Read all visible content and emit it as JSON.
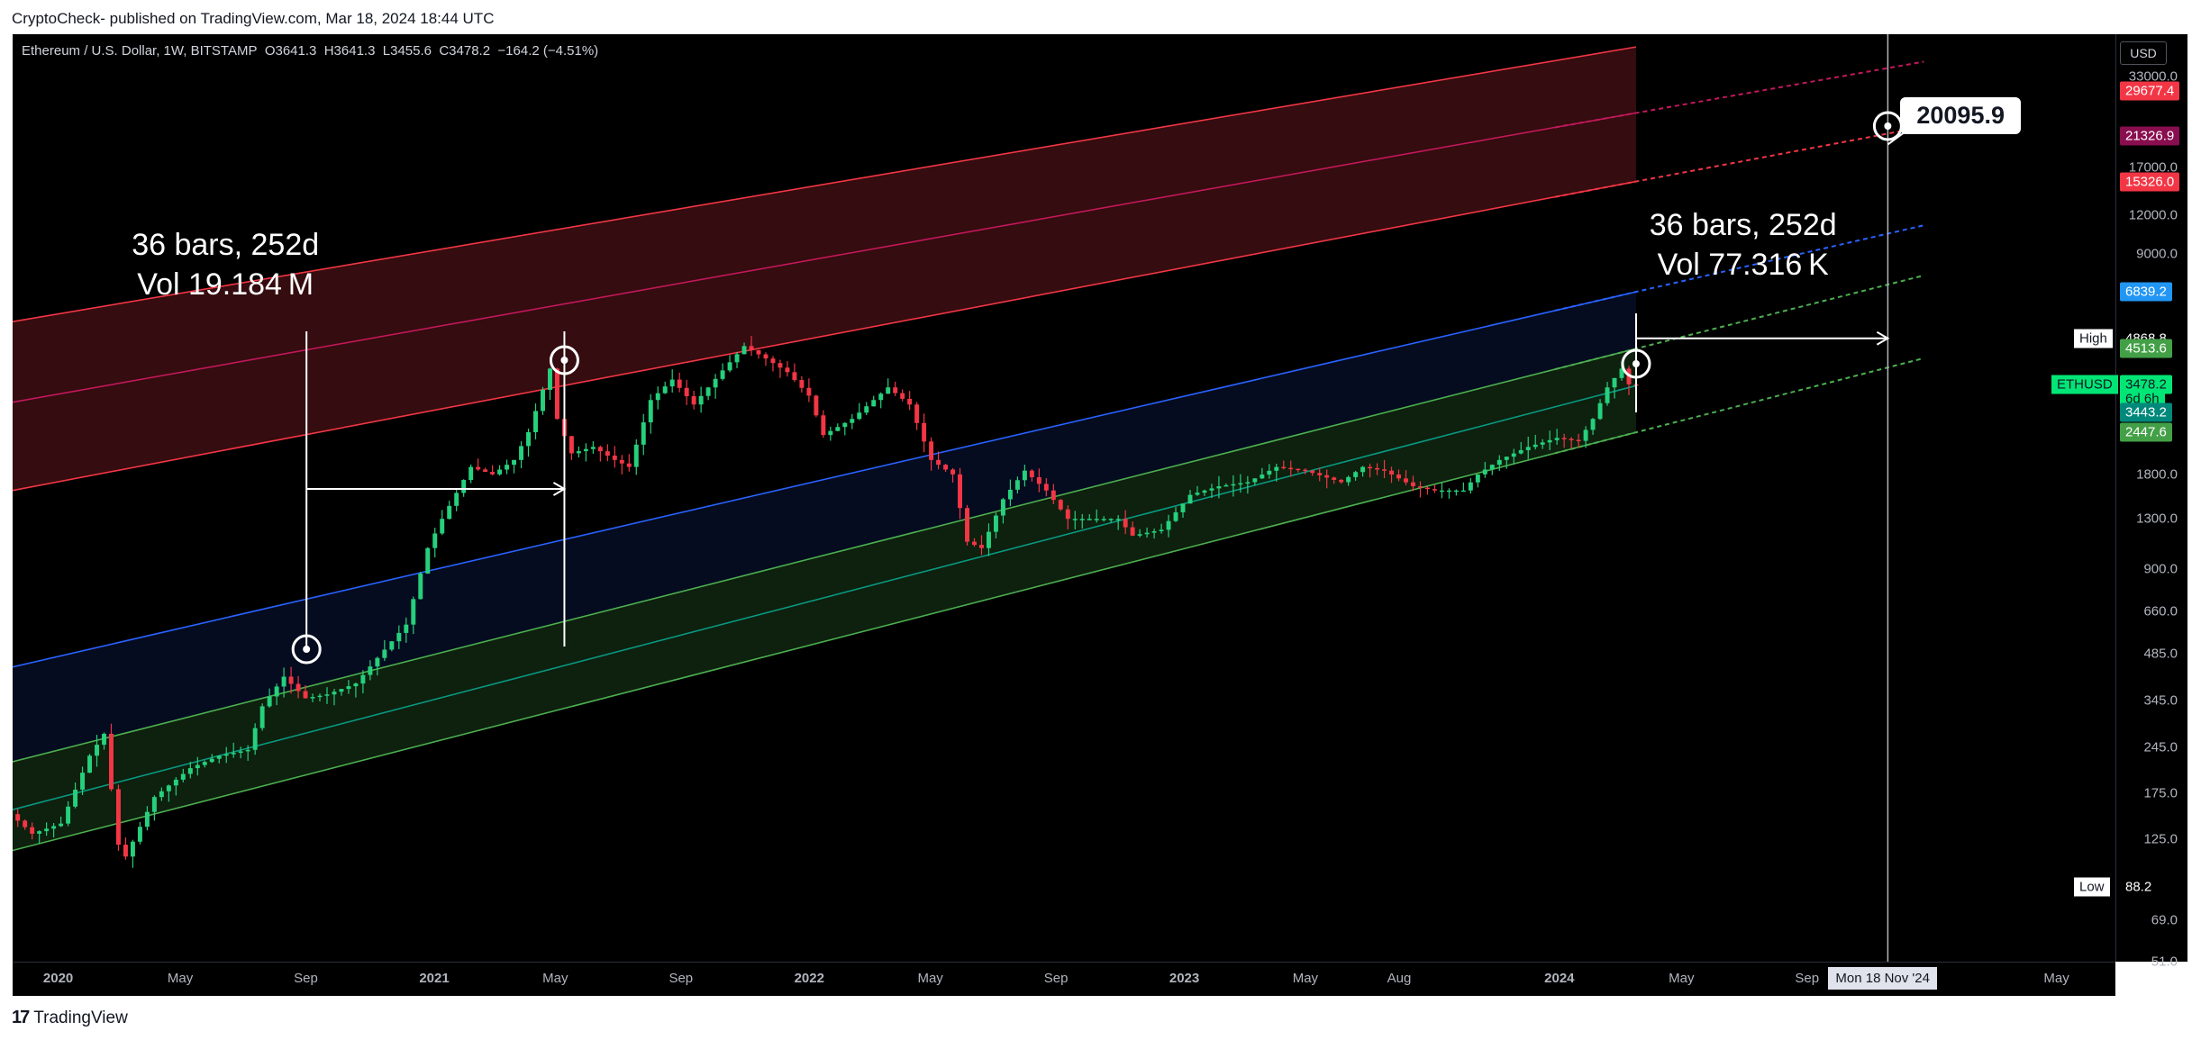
{
  "header": {
    "published": "CryptoCheck- published on TradingView.com, Mar 18, 2024 18:44 UTC"
  },
  "footer": {
    "brand": "TradingView",
    "brand_icon": "tradingview-logo-icon"
  },
  "symbol": {
    "name": "Ethereum / U.S. Dollar, 1W, BITSTAMP",
    "open": "O3641.3",
    "high": "H3641.3",
    "low": "L3455.6",
    "close": "C3478.2",
    "change": "−164.2 (−4.51%)"
  },
  "currency": "USD",
  "chart_data": {
    "type": "candlestick",
    "symbol": "ETHUSD",
    "interval": "1W",
    "yscale": "log",
    "ylim": [
      51,
      45000
    ],
    "xlim": [
      "2019-11-20",
      "2025-07-01"
    ],
    "x_ticks": [
      {
        "label": "2020",
        "date": "2020-01-01"
      },
      {
        "label": "May",
        "date": "2020-05-01"
      },
      {
        "label": "Sep",
        "date": "2020-09-01"
      },
      {
        "label": "2021",
        "date": "2021-01-01"
      },
      {
        "label": "May",
        "date": "2021-05-01"
      },
      {
        "label": "Sep",
        "date": "2021-09-01"
      },
      {
        "label": "2022",
        "date": "2022-01-01"
      },
      {
        "label": "May",
        "date": "2022-05-01"
      },
      {
        "label": "Sep",
        "date": "2022-09-01"
      },
      {
        "label": "2023",
        "date": "2023-01-01"
      },
      {
        "label": "May",
        "date": "2023-05-01"
      },
      {
        "label": "Aug",
        "date": "2023-08-01"
      },
      {
        "label": "2024",
        "date": "2024-01-01"
      },
      {
        "label": "May",
        "date": "2024-05-01"
      },
      {
        "label": "Sep",
        "date": "2024-09-01"
      },
      {
        "label": "May",
        "date": "2025-05-01"
      }
    ],
    "y_ticks": [
      33000,
      17000,
      12000,
      9000,
      1800,
      1300,
      900,
      660,
      485,
      345,
      245,
      175,
      125,
      69,
      51
    ],
    "price_path": [
      [
        "2019-11-25",
        150
      ],
      [
        "2019-12-16",
        130
      ],
      [
        "2020-01-13",
        140
      ],
      [
        "2020-02-10",
        230
      ],
      [
        "2020-02-24",
        270
      ],
      [
        "2020-03-09",
        120
      ],
      [
        "2020-03-16",
        110
      ],
      [
        "2020-04-13",
        170
      ],
      [
        "2020-05-18",
        210
      ],
      [
        "2020-06-15",
        230
      ],
      [
        "2020-07-13",
        240
      ],
      [
        "2020-07-27",
        330
      ],
      [
        "2020-08-17",
        410
      ],
      [
        "2020-09-07",
        350
      ],
      [
        "2020-09-28",
        360
      ],
      [
        "2020-10-26",
        390
      ],
      [
        "2020-11-16",
        470
      ],
      [
        "2020-12-14",
        600
      ],
      [
        "2021-01-04",
        1050
      ],
      [
        "2021-01-18",
        1300
      ],
      [
        "2021-02-15",
        1900
      ],
      [
        "2021-03-08",
        1800
      ],
      [
        "2021-03-29",
        2000
      ],
      [
        "2021-04-12",
        2450
      ],
      [
        "2021-05-03",
        3900
      ],
      [
        "2021-05-10",
        2700
      ],
      [
        "2021-05-24",
        2100
      ],
      [
        "2021-06-14",
        2200
      ],
      [
        "2021-07-05",
        2000
      ],
      [
        "2021-07-19",
        1900
      ],
      [
        "2021-08-09",
        3100
      ],
      [
        "2021-08-30",
        3600
      ],
      [
        "2021-09-20",
        3000
      ],
      [
        "2021-10-18",
        3850
      ],
      [
        "2021-11-08",
        4600
      ],
      [
        "2021-11-29",
        4200
      ],
      [
        "2021-12-20",
        3800
      ],
      [
        "2022-01-10",
        3200
      ],
      [
        "2022-01-24",
        2400
      ],
      [
        "2022-02-21",
        2700
      ],
      [
        "2022-03-28",
        3400
      ],
      [
        "2022-04-18",
        3000
      ],
      [
        "2022-05-09",
        2000
      ],
      [
        "2022-05-30",
        1800
      ],
      [
        "2022-06-13",
        1100
      ],
      [
        "2022-06-27",
        1050
      ],
      [
        "2022-07-18",
        1500
      ],
      [
        "2022-08-08",
        1850
      ],
      [
        "2022-08-29",
        1600
      ],
      [
        "2022-09-19",
        1300
      ],
      [
        "2022-10-17",
        1300
      ],
      [
        "2022-11-07",
        1300
      ],
      [
        "2022-11-21",
        1150
      ],
      [
        "2022-12-19",
        1200
      ],
      [
        "2023-01-16",
        1550
      ],
      [
        "2023-02-13",
        1650
      ],
      [
        "2023-03-13",
        1700
      ],
      [
        "2023-04-10",
        1900
      ],
      [
        "2023-05-08",
        1850
      ],
      [
        "2023-06-12",
        1700
      ],
      [
        "2023-07-03",
        1900
      ],
      [
        "2023-07-24",
        1850
      ],
      [
        "2023-08-21",
        1650
      ],
      [
        "2023-09-11",
        1600
      ],
      [
        "2023-10-09",
        1600
      ],
      [
        "2023-10-23",
        1800
      ],
      [
        "2023-11-13",
        2000
      ],
      [
        "2023-12-11",
        2200
      ],
      [
        "2024-01-08",
        2350
      ],
      [
        "2024-01-29",
        2300
      ],
      [
        "2024-02-12",
        2700
      ],
      [
        "2024-02-26",
        3400
      ],
      [
        "2024-03-11",
        3900
      ],
      [
        "2024-03-18",
        3478.2
      ]
    ],
    "channel": {
      "anchor_start": "2019-11-20",
      "anchor_end": "2024-03-18",
      "extend_to": "2024-11-18",
      "lines": [
        {
          "name": "red-top",
          "color": "#f23645",
          "start": 5500,
          "end": 41000
        },
        {
          "name": "red-mid",
          "color": "#c2185b",
          "start": 3050,
          "end": 25300
        },
        {
          "name": "red-bottom",
          "color": "#f23645",
          "start": 1600,
          "end": 15326
        },
        {
          "name": "blue",
          "color": "#2962ff",
          "start": 440,
          "end": 6839.2
        },
        {
          "name": "green-top",
          "color": "#4caf50",
          "start": 220,
          "end": 4513.6
        },
        {
          "name": "teal-mid",
          "color": "#089981",
          "start": 155,
          "end": 3443.2
        },
        {
          "name": "green-bottom",
          "color": "#4caf50",
          "start": 115,
          "end": 2447.6
        }
      ]
    },
    "price_labels": [
      {
        "value": "29677.4",
        "price": 29677.4,
        "bg": "#f23645"
      },
      {
        "value": "21326.9",
        "price": 21326.9,
        "bg": "#880e4f"
      },
      {
        "value": "15326.0",
        "price": 15326.0,
        "bg": "#f23645"
      },
      {
        "value": "6839.2",
        "price": 6839.2,
        "bg": "#2196f3"
      },
      {
        "value": "4868.8",
        "price": 4868.8,
        "bg": "#000000"
      },
      {
        "value": "4513.6",
        "price": 4513.6,
        "bg": "#43a047"
      },
      {
        "value": "3478.2",
        "price": 3478.2,
        "bg": "#00e676"
      },
      {
        "value": "6d 6h",
        "price": 3130,
        "bg": "#00e676"
      },
      {
        "value": "3443.2",
        "price": 2840,
        "bg": "#00897b"
      },
      {
        "value": "2447.6",
        "price": 2447.6,
        "bg": "#43a047"
      },
      {
        "value": "88.2",
        "price": 88.2,
        "bg": "#000000"
      }
    ],
    "side_tags": [
      {
        "label": "High",
        "price": 4868.8
      },
      {
        "label": "ETHUSD",
        "price": 3478.2
      },
      {
        "label": "Low",
        "price": 88.2
      }
    ],
    "annotations": [
      {
        "line1": "36 bars, 252d",
        "line2": "Vol 19.184 M",
        "anchor_date": "2020-06-15"
      },
      {
        "line1": "36 bars, 252d",
        "line2": "Vol 77.316 K",
        "anchor_date": "2024-07-01"
      }
    ],
    "projection": {
      "value": "20095.9",
      "price": 20095.9,
      "date": "2024-11-18"
    },
    "crosshair_date": "Mon 18 Nov '24"
  }
}
